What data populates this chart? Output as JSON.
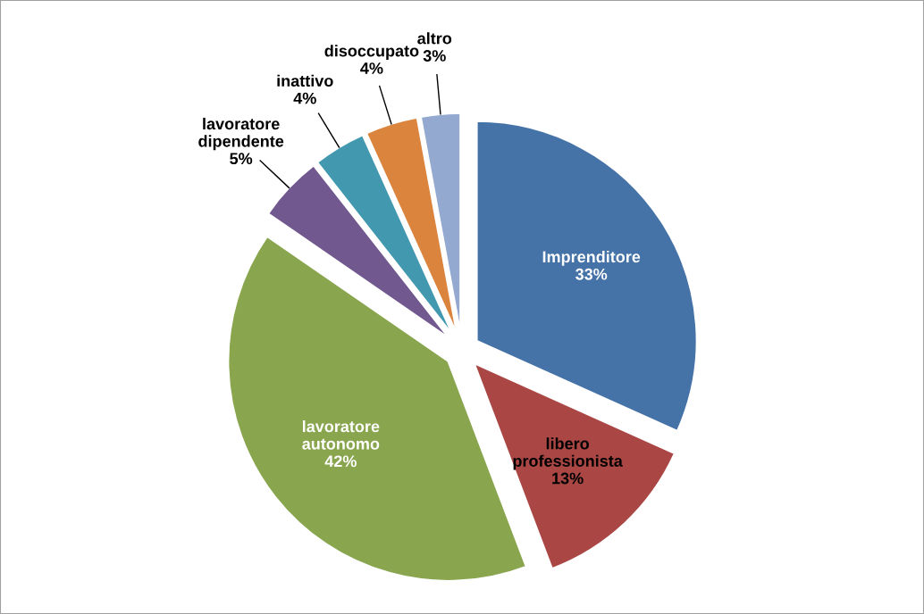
{
  "chart_data": {
    "type": "pie",
    "categories": [
      "Imprenditore",
      "libero professionista",
      "lavoratore autonomo",
      "lavoratore dipendente",
      "inattivo",
      "disoccupato",
      "altro"
    ],
    "values": [
      33,
      13,
      42,
      5,
      4,
      4,
      3
    ],
    "colors": [
      "#4572a7",
      "#aa4643",
      "#89a54e",
      "#71588f",
      "#4198af",
      "#db843d",
      "#93a9cf"
    ],
    "value_labels": [
      "33%",
      "13%",
      "42%",
      "5%",
      "4%",
      "4%",
      "3%"
    ],
    "legend": false
  }
}
